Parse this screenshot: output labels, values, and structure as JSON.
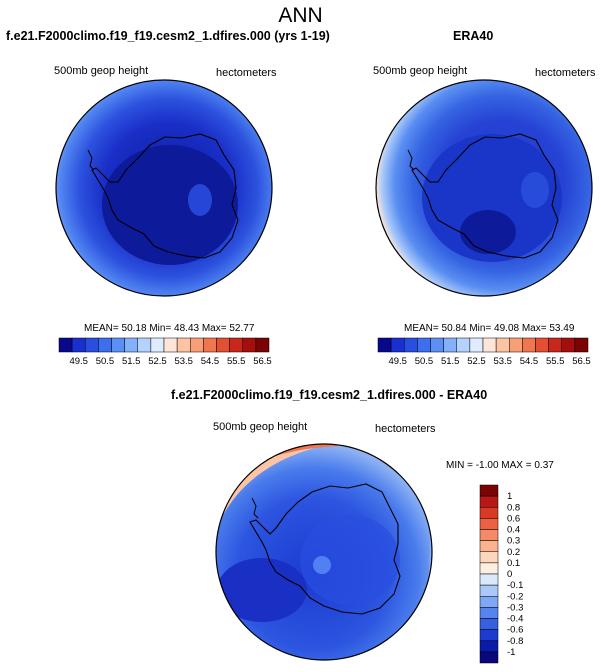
{
  "main_title": "ANN",
  "panels": [
    {
      "title": "f.e21.F2000climo.f19_f19.cesm2_1.dfires.000 (yrs 1-19)",
      "left_label": "500mb geop height",
      "right_label": "hectometers",
      "stats": "MEAN= 50.18  Min= 48.43  Max= 52.77"
    },
    {
      "title": "ERA40",
      "left_label": "500mb geop height",
      "right_label": "hectometers",
      "stats": "MEAN= 50.84  Min= 49.08  Max= 53.49"
    },
    {
      "title": "f.e21.F2000climo.f19_f19.cesm2_1.dfires.000 - ERA40",
      "left_label": "500mb geop height",
      "right_label": "hectometers",
      "stats": "MIN = -1.00 MAX =  0.37"
    }
  ],
  "colorbar_abs": {
    "ticks": [
      "49.5",
      "50.5",
      "51.5",
      "52.5",
      "53.5",
      "54.5",
      "55.5",
      "56.5"
    ],
    "colors": [
      "#08088a",
      "#1a2fd0",
      "#2a4fe0",
      "#3d6ef0",
      "#5b8ff6",
      "#84b0fa",
      "#b4d2fc",
      "#e0ecfd",
      "#fde6d8",
      "#fbc5a5",
      "#f79f77",
      "#f07650",
      "#e24f33",
      "#c8281c",
      "#a40f0d",
      "#7a0403"
    ]
  },
  "colorbar_diff": {
    "ticks": [
      "1",
      "0.8",
      "0.6",
      "0.4",
      "0.3",
      "0.2",
      "0.1",
      "0",
      "-0.1",
      "-0.2",
      "-0.3",
      "-0.4",
      "-0.6",
      "-0.8",
      "-1"
    ],
    "colors": [
      "#7a0403",
      "#b81816",
      "#d83a26",
      "#ec6143",
      "#f58b66",
      "#fab28f",
      "#fcd6bd",
      "#fdeee2",
      "#d9e8fb",
      "#aac9f9",
      "#7ea8f4",
      "#5684ec",
      "#3560e0",
      "#1d3ccf",
      "#0b1aa8",
      "#08087a"
    ]
  },
  "colors": {
    "ocean_deep": "#1e3cc8",
    "ocean_mid": "#3a64e4",
    "ocean_light": "#8ab2f6",
    "antarctica_fill": "#0d1a9a",
    "coast": "#000000"
  }
}
